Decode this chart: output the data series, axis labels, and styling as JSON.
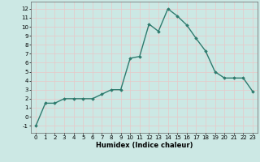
{
  "x": [
    0,
    1,
    2,
    3,
    4,
    5,
    6,
    7,
    8,
    9,
    10,
    11,
    12,
    13,
    14,
    15,
    16,
    17,
    18,
    19,
    20,
    21,
    22,
    23
  ],
  "y": [
    -1,
    1.5,
    1.5,
    2.0,
    2.0,
    2.0,
    2.0,
    2.5,
    3.0,
    3.0,
    6.5,
    6.7,
    10.3,
    9.5,
    12.0,
    11.2,
    10.2,
    8.7,
    7.3,
    5.0,
    4.3,
    4.3,
    4.3,
    2.8
  ],
  "line_color": "#2e7b6e",
  "marker": "D",
  "markersize": 1.8,
  "linewidth": 1.0,
  "xlabel": "Humidex (Indice chaleur)",
  "xlim": [
    -0.5,
    23.5
  ],
  "ylim": [
    -1.8,
    12.8
  ],
  "yticks": [
    -1,
    0,
    1,
    2,
    3,
    4,
    5,
    6,
    7,
    8,
    9,
    10,
    11,
    12
  ],
  "xticks": [
    0,
    1,
    2,
    3,
    4,
    5,
    6,
    7,
    8,
    9,
    10,
    11,
    12,
    13,
    14,
    15,
    16,
    17,
    18,
    19,
    20,
    21,
    22,
    23
  ],
  "bg_color": "#cce8e4",
  "grid_color": "#e8c8c8",
  "tick_fontsize": 5.0,
  "xlabel_fontsize": 6.0
}
